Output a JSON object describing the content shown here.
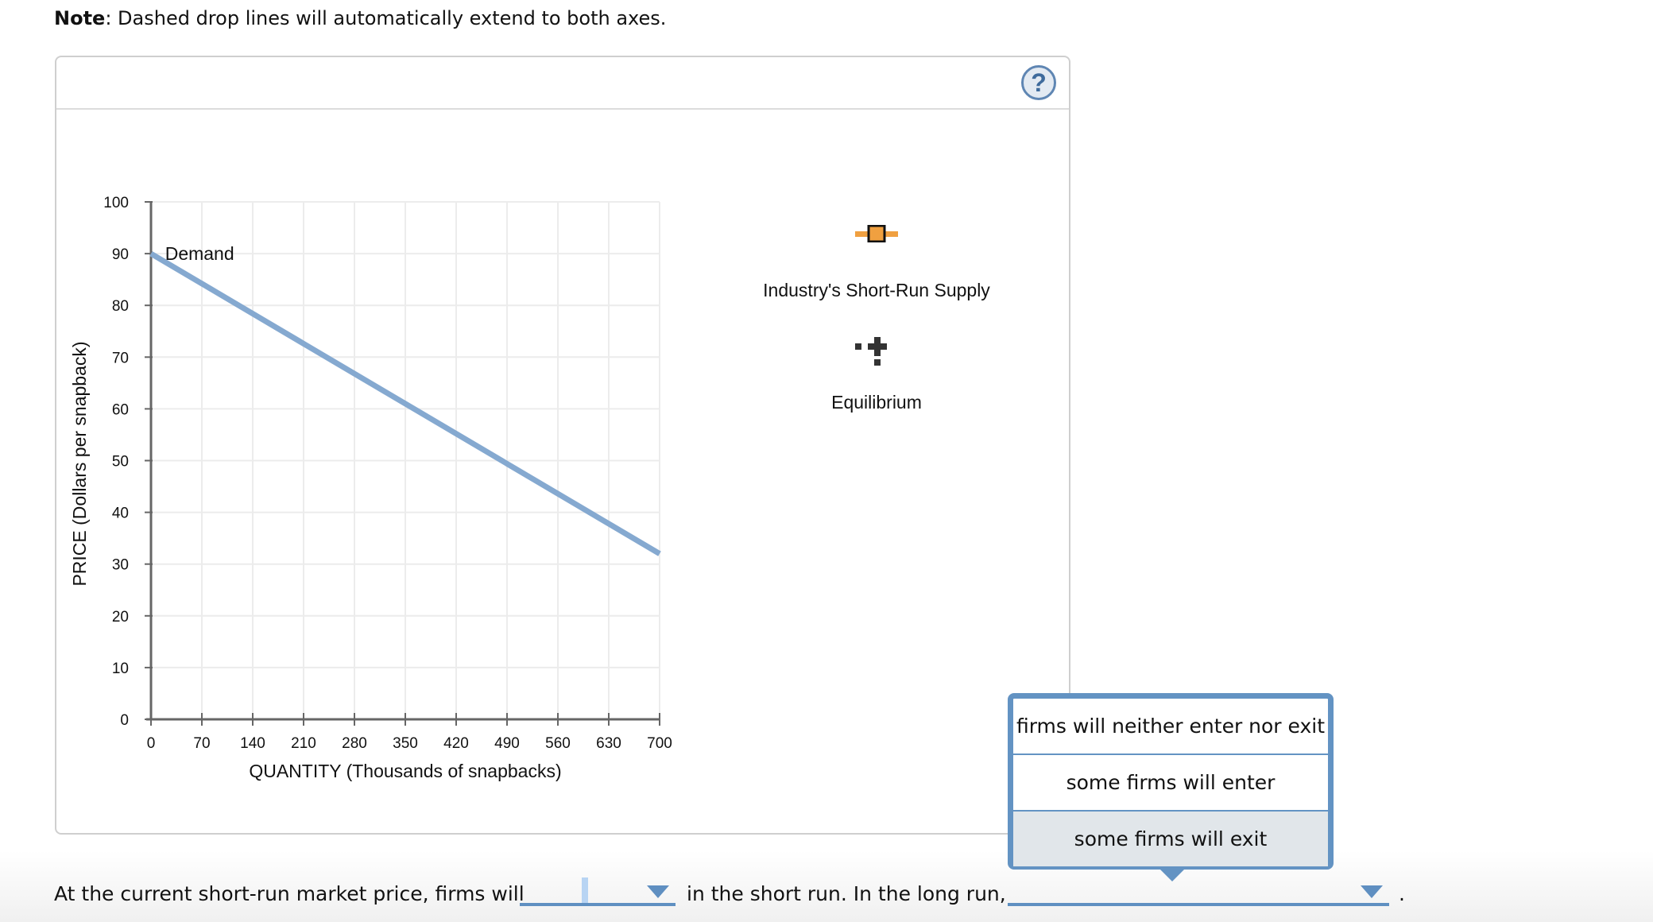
{
  "note": {
    "bold": "Note",
    "text": ": Dashed drop lines will automatically extend to both axes."
  },
  "help_icon": {
    "glyph": "?"
  },
  "colors": {
    "demand_line": "#85a9d0",
    "supply_orange": "#f0a040",
    "equilibrium": "#333333",
    "dropdown_accent": "#5f8fc1",
    "grid": "#ececec",
    "axis": "#666666"
  },
  "chart_data": {
    "type": "line",
    "xlabel": "QUANTITY (Thousands of snapbacks)",
    "ylabel": "PRICE (Dollars per snapback)",
    "xlim": [
      0,
      700
    ],
    "ylim": [
      0,
      100
    ],
    "x_ticks": [
      0,
      70,
      140,
      210,
      280,
      350,
      420,
      490,
      560,
      630,
      700
    ],
    "y_ticks": [
      0,
      10,
      20,
      30,
      40,
      50,
      60,
      70,
      80,
      90,
      100
    ],
    "grid": true,
    "series": [
      {
        "name": "Demand",
        "x": [
          0,
          700
        ],
        "y": [
          90,
          32
        ],
        "color": "#85a9d0"
      }
    ],
    "annotations": [
      {
        "text": "Demand",
        "x": 15,
        "y": 90
      }
    ]
  },
  "legend": {
    "items": [
      {
        "label": "Industry's Short-Run Supply",
        "icon": "orange-square-line-icon"
      },
      {
        "label": "Equilibrium",
        "icon": "cross-point-icon"
      }
    ]
  },
  "question": {
    "part1": "At the current short-run market price, firms will",
    "part2": "in the short run. In the long run,",
    "part3": ".",
    "dropdown1": {
      "value": ""
    },
    "dropdown2": {
      "value": ""
    }
  },
  "popup": {
    "options": [
      "firms will neither enter nor exit",
      "some firms will enter",
      "some firms will exit"
    ],
    "hovered_index": 2
  }
}
